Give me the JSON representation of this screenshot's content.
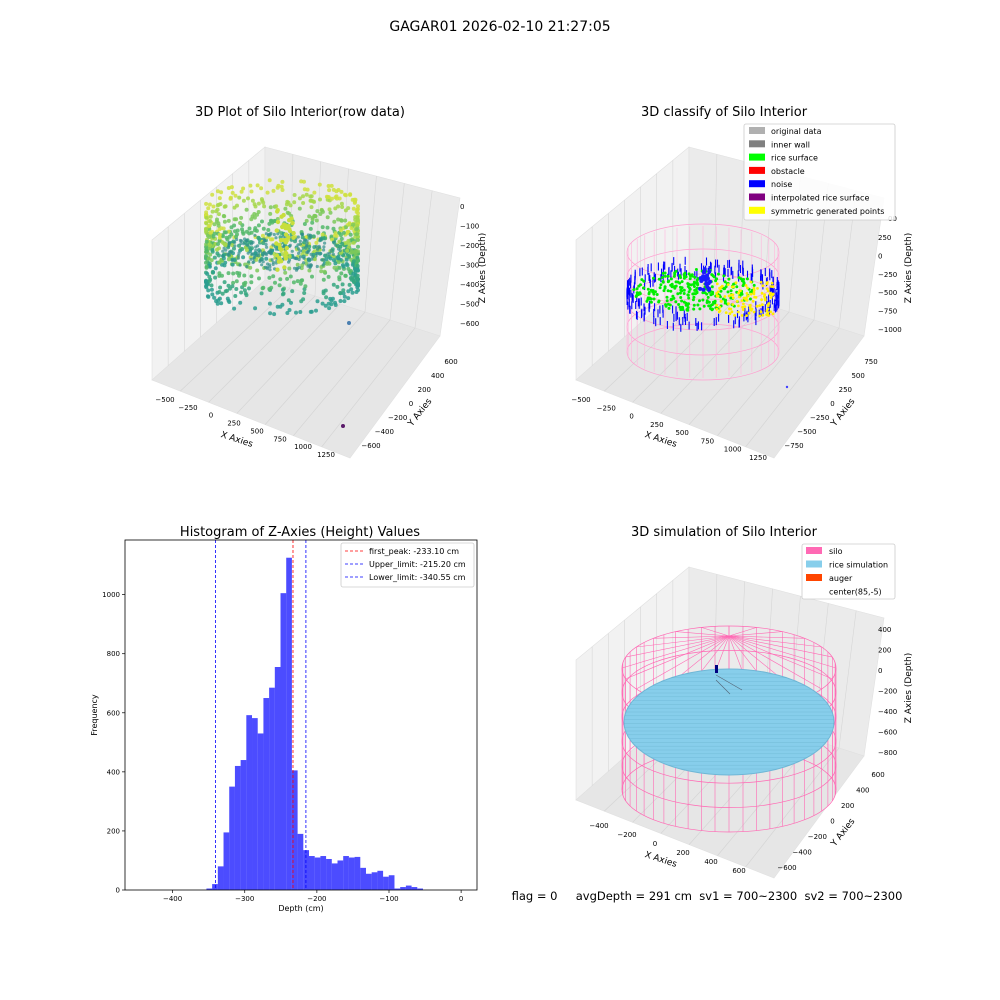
{
  "suptitle": "GAGAR01 2026-02-10 21:27:05",
  "status_line": "flag = 0     avgDepth = 291 cm  sv1 = 700~2300  sv2 = 700~2300",
  "colors": {
    "silo_pink": "#ff69b4",
    "rice_blue": "#87ceeb",
    "auger": "#ff4500",
    "hist_blue": "#0000ff",
    "rice_surface": "#00ff00",
    "noise": "#0000ff",
    "symmetric": "#ffff00",
    "original": "#b0b0b0",
    "inner_wall": "#808080",
    "obstacle": "#ff0000",
    "interpolated": "#800080"
  },
  "panels": {
    "raw": {
      "title": "3D Plot of Silo Interior(row data)",
      "xlabel": "X Axies",
      "ylabel": "Y Axies",
      "zlabel": "Z Axies (Depth)",
      "xticks": [
        "−500",
        "−250",
        "0",
        "250",
        "500",
        "750",
        "1000",
        "1250"
      ],
      "yticks": [
        "600",
        "400",
        "200",
        "0",
        "−200",
        "−400",
        "−600"
      ],
      "zticks": [
        "0",
        "−100",
        "−200",
        "−300",
        "−400",
        "−500",
        "−600"
      ]
    },
    "classify": {
      "title": "3D classify of Silo Interior",
      "xlabel": "X Axies",
      "ylabel": "Y Axies",
      "zlabel": "Z Axies (Depth)",
      "xticks": [
        "−500",
        "−250",
        "0",
        "250",
        "500",
        "750",
        "1000",
        "1250"
      ],
      "yticks": [
        "750",
        "500",
        "250",
        "0",
        "−250",
        "−500",
        "−750"
      ],
      "zticks": [
        "250",
        "0",
        "−250",
        "−500",
        "−750",
        "−1000"
      ],
      "legend": [
        {
          "label": "original data",
          "color": "#b0b0b0"
        },
        {
          "label": "inner wall",
          "color": "#808080"
        },
        {
          "label": "rice surface",
          "color": "#00ff00"
        },
        {
          "label": "obstacle",
          "color": "#ff0000"
        },
        {
          "label": "noise",
          "color": "#0000ff"
        },
        {
          "label": "interpolated rice surface",
          "color": "#800080"
        },
        {
          "label": "symmetric generated points",
          "color": "#ffff00"
        }
      ],
      "partial_ztick": "00"
    },
    "simulation": {
      "title": "3D simulation of Silo Interior",
      "xlabel": "X Axies",
      "ylabel": "Y Axies",
      "zlabel": "Z Axies (Depth)",
      "xticks": [
        "−400",
        "−200",
        "0",
        "200",
        "400",
        "600"
      ],
      "yticks": [
        "600",
        "400",
        "200",
        "0",
        "−200",
        "−400",
        "−600"
      ],
      "zticks": [
        "400",
        "200",
        "0",
        "−200",
        "−400",
        "−600",
        "−800"
      ],
      "legend": [
        {
          "label": "silo",
          "color": "#ff69b4"
        },
        {
          "label": "rice simulation",
          "color": "#87ceeb"
        },
        {
          "label": "auger",
          "color": "#ff4500"
        },
        {
          "label": "center(85,-5)",
          "color": ""
        }
      ]
    }
  },
  "chart_data": {
    "type": "bar",
    "title": "Histogram of Z-Axies (Height) Values",
    "xlabel": "Depth (cm)",
    "ylabel": "Frequency",
    "xlim": [
      -466,
      22
    ],
    "ylim": [
      0,
      1185
    ],
    "xticks": [
      -400,
      -300,
      -200,
      -100,
      0
    ],
    "xtick_labels": [
      "−400",
      "−300",
      "−200",
      "−100",
      "0"
    ],
    "yticks": [
      0,
      200,
      400,
      600,
      800,
      1000
    ],
    "yticks_labels": [
      "0",
      "200",
      "400",
      "600",
      "800",
      "1000"
    ],
    "bin_edges": [
      -353.1,
      -345.2,
      -337.3,
      -329.4,
      -321.5,
      -313.6,
      -305.7,
      -297.8,
      -289.9,
      -282.0,
      -274.1,
      -266.2,
      -258.3,
      -250.4,
      -242.5,
      -234.6,
      -226.7,
      -218.8,
      -210.9,
      -203.0,
      -195.1,
      -187.2,
      -179.3,
      -171.4,
      -163.5,
      -155.6,
      -147.7,
      -139.8,
      -131.9,
      -124.0,
      -116.1,
      -108.2,
      -100.3,
      -92.4,
      -84.5,
      -76.6,
      -68.7,
      -60.8,
      -52.9,
      -45.0,
      -37.1,
      -29.2,
      -21.3,
      -13.4,
      -5.5,
      2.4
    ],
    "values": [
      5,
      20,
      80,
      195,
      350,
      420,
      440,
      592,
      582,
      530,
      650,
      685,
      755,
      1005,
      1125,
      405,
      190,
      135,
      115,
      110,
      115,
      105,
      90,
      100,
      115,
      110,
      112,
      75,
      55,
      60,
      65,
      45,
      50,
      5,
      10,
      15,
      10,
      5,
      0,
      0,
      0,
      0,
      0,
      0,
      0
    ],
    "vlines": [
      {
        "label": "first_peak: -233.10 cm",
        "x": -233.1,
        "color": "#ff0000"
      },
      {
        "label": "Upper_limit: -215.20 cm",
        "x": -215.2,
        "color": "#0000ff"
      },
      {
        "label": "Lower_limit: -340.55 cm",
        "x": -340.55,
        "color": "#0000ff"
      }
    ],
    "legend_position": "top-right",
    "grid": false
  }
}
